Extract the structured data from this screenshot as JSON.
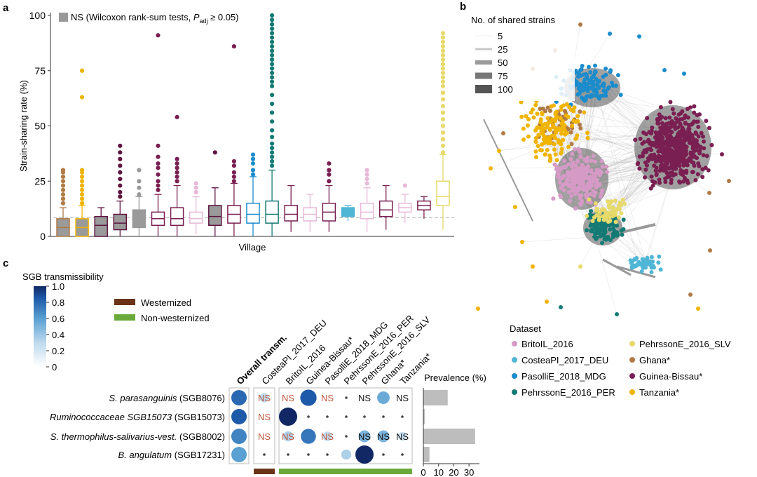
{
  "colors": {
    "brown": "#b07a45",
    "yellow": "#f0b400",
    "purple": "#7a1f52",
    "darkpurple": "#5e1440",
    "gray": "#999999",
    "pink": "#d59ac6",
    "lightpink": "#e7b9d8",
    "teal": "#137a74",
    "blue": "#1b8ccc",
    "cyan": "#4fb6d6",
    "paleyellow": "#e6da6b",
    "westernized": "#6b3418",
    "nonwesternized": "#6aaa3a",
    "nsred": "#c0573c"
  },
  "chart_data": [
    {
      "type": "box",
      "panel": "a",
      "ylabel": "Strain-sharing rate (%)",
      "xlabel": "Village",
      "ylim": [
        0,
        100
      ],
      "yticks": [
        "0",
        "25",
        "50",
        "75",
        "100"
      ],
      "legend": {
        "label": "NS (Wilcoxon rank-sum tests, ",
        "italic": "P",
        "sub": "adj",
        "rest": " ≥ 0.05)"
      },
      "reference_line": 8.5,
      "boxes": [
        {
          "color": "brown",
          "q1": 0,
          "median": 4,
          "q3": 8,
          "lo": 0,
          "hi": 13,
          "filled": true,
          "outliers": [
            15,
            17,
            19,
            21,
            23,
            25,
            27,
            29,
            30
          ]
        },
        {
          "color": "yellow",
          "q1": 0,
          "median": 4,
          "q3": 8,
          "lo": 0,
          "hi": 14,
          "filled": true,
          "outliers": [
            15,
            17,
            19,
            21,
            23,
            25,
            27,
            29,
            30,
            63,
            75
          ]
        },
        {
          "color": "darkpurple",
          "q1": 0,
          "median": 5,
          "q3": 9,
          "lo": 0,
          "hi": 13,
          "filled": true,
          "outliers": []
        },
        {
          "color": "darkpurple",
          "q1": 3,
          "median": 6,
          "q3": 10,
          "lo": 0,
          "hi": 16,
          "filled": true,
          "outliers": [
            18,
            20,
            23,
            26,
            29,
            32,
            35,
            38,
            41
          ]
        },
        {
          "color": "gray",
          "q1": 4,
          "median": 8,
          "q3": 12,
          "lo": 0,
          "hi": 18,
          "filled": true,
          "outliers": [
            19,
            22,
            25,
            30
          ]
        },
        {
          "color": "purple",
          "q1": 5,
          "median": 8,
          "q3": 11,
          "lo": 0,
          "hi": 19,
          "filled": false,
          "outliers": [
            21,
            23,
            25,
            28,
            31,
            33,
            36,
            41,
            91
          ]
        },
        {
          "color": "purple",
          "q1": 5,
          "median": 8,
          "q3": 13,
          "lo": 0,
          "hi": 23,
          "filled": false,
          "outliers": [
            25,
            27,
            29,
            31,
            33,
            35,
            54
          ]
        },
        {
          "color": "lightpink",
          "q1": 6,
          "median": 8,
          "q3": 11,
          "lo": 1,
          "hi": 18,
          "filled": false,
          "outliers": [
            20,
            22,
            24
          ]
        },
        {
          "color": "darkpurple",
          "q1": 5,
          "median": 9,
          "q3": 14,
          "lo": 0,
          "hi": 22,
          "filled": true,
          "outliers": [
            38
          ]
        },
        {
          "color": "purple",
          "q1": 6,
          "median": 10,
          "q3": 14,
          "lo": 0,
          "hi": 24,
          "filled": false,
          "outliers": [
            25,
            27,
            29,
            32,
            34,
            86
          ]
        },
        {
          "color": "blue",
          "q1": 6,
          "median": 10,
          "q3": 15,
          "lo": 0,
          "hi": 27,
          "filled": false,
          "outliers": [
            28,
            30,
            33,
            35,
            37
          ]
        },
        {
          "color": "teal",
          "q1": 6,
          "median": 10,
          "q3": 16,
          "lo": 0,
          "hi": 30,
          "filled": false,
          "outliers": [
            32,
            34,
            36,
            38,
            40,
            42,
            45,
            48,
            52,
            56,
            60,
            64,
            68,
            70,
            72,
            74,
            76,
            78,
            80,
            82,
            84,
            86,
            88,
            90,
            92,
            94,
            96,
            98,
            100
          ]
        },
        {
          "color": "purple",
          "q1": 7,
          "median": 10,
          "q3": 14,
          "lo": 2,
          "hi": 23,
          "filled": false,
          "outliers": []
        },
        {
          "color": "lightpink",
          "q1": 7,
          "median": 10,
          "q3": 13,
          "lo": 2,
          "hi": 19,
          "filled": false,
          "outliers": []
        },
        {
          "color": "purple",
          "q1": 7,
          "median": 11,
          "q3": 15,
          "lo": 2,
          "hi": 23,
          "filled": false,
          "outliers": [
            25,
            28,
            30,
            33
          ]
        },
        {
          "color": "cyan",
          "q1": 9,
          "median": 11,
          "q3": 13,
          "lo": 7,
          "hi": 14,
          "filled": true,
          "outliers": []
        },
        {
          "color": "lightpink",
          "q1": 8,
          "median": 11,
          "q3": 15,
          "lo": 2,
          "hi": 22,
          "filled": false,
          "outliers": [
            24,
            26,
            28,
            30
          ]
        },
        {
          "color": "purple",
          "q1": 9,
          "median": 12,
          "q3": 16,
          "lo": 3,
          "hi": 23,
          "filled": false,
          "outliers": []
        },
        {
          "color": "lightpink",
          "q1": 11,
          "median": 13,
          "q3": 15,
          "lo": 6,
          "hi": 19,
          "filled": false,
          "outliers": [
            23
          ]
        },
        {
          "color": "purple",
          "q1": 12,
          "median": 14,
          "q3": 16,
          "lo": 8,
          "hi": 18,
          "filled": false,
          "outliers": []
        },
        {
          "color": "paleyellow",
          "q1": 14,
          "median": 18,
          "q3": 25,
          "lo": 3,
          "hi": 37,
          "filled": false,
          "outliers": [
            38,
            41,
            44,
            47,
            50,
            53,
            56,
            59,
            62,
            65,
            68,
            70,
            72,
            74,
            76,
            78,
            80,
            82,
            84,
            86,
            88,
            90,
            92
          ]
        }
      ]
    },
    {
      "type": "network",
      "panel": "b",
      "legend_title": "No. of shared strains",
      "legend_values": [
        "5",
        "25",
        "50",
        "75",
        "100"
      ],
      "dataset_title": "Dataset",
      "datasets": [
        {
          "name": "BritoIL_2016",
          "color": "pink"
        },
        {
          "name": "CosteaPI_2017_DEU",
          "color": "cyan"
        },
        {
          "name": "PasolliE_2018_MDG",
          "color": "blue"
        },
        {
          "name": "PehrssonE_2016_PER",
          "color": "teal"
        },
        {
          "name": "PehrssonE_2016_SLV",
          "color": "paleyellow"
        },
        {
          "name": "Ghana*",
          "color": "brown"
        },
        {
          "name": "Guinea-Bissau*",
          "color": "purple"
        },
        {
          "name": "Tanzania*",
          "color": "yellow"
        }
      ]
    },
    {
      "type": "heatmap",
      "panel": "c",
      "colorbar_title": "SGB transmissibility",
      "colorbar_ticks": [
        "1.0",
        "0.8",
        "0.6",
        "0.4",
        "0.2",
        "0"
      ],
      "group_legend": [
        {
          "label": "Westernized",
          "color": "westernized"
        },
        {
          "label": "Non-westernized",
          "color": "nonwesternized"
        }
      ],
      "columns": [
        "Overall transm.",
        "CosteaPI_2017_DEU",
        "BritoIL_2016",
        "Guinea-Bissau*",
        "PasolliE_2018_MDG",
        "PehrssonE_2016_PER",
        "PehrssonE_2016_SLV",
        "Ghana*",
        "Tanzania*"
      ],
      "rows": [
        {
          "italic": "S. parasanguinis",
          "rest": " (SGB8076)",
          "prevalence": 16,
          "cells": [
            {
              "v": 0.8
            },
            {
              "v": 0.3,
              "ns": true,
              "nsc": "red"
            },
            {
              "v": 0,
              "ns": true,
              "nsc": "red"
            },
            {
              "v": 0.85
            },
            {
              "v": 0,
              "ns": true,
              "nsc": "red"
            },
            {
              "v": 0,
              "dot": true
            },
            {
              "v": 0,
              "ns": true,
              "nsc": "dark"
            },
            {
              "v": 0.55
            },
            {
              "v": 0,
              "ns": true,
              "nsc": "dark"
            }
          ]
        },
        {
          "italic": "Ruminococcaceae SGB15073",
          "rest": " (SGB15073)",
          "prevalence": 1,
          "cells": [
            {
              "v": 0.85
            },
            {
              "v": 0,
              "ns": true,
              "nsc": "red"
            },
            {
              "v": 1.0
            },
            {
              "v": 0,
              "dot": true
            },
            {
              "v": 0,
              "dot": true
            },
            {
              "v": 0,
              "dot": true
            },
            {
              "v": 0,
              "dot": true
            },
            {
              "v": 0,
              "dot": true
            },
            {
              "v": 0,
              "dot": true
            }
          ]
        },
        {
          "italic": "S. thermophilus-salivarius-vest.",
          "rest": " (SGB8002)",
          "prevalence": 34,
          "cells": [
            {
              "v": 0.7
            },
            {
              "v": 0,
              "ns": true,
              "nsc": "red"
            },
            {
              "v": 0.35,
              "ns": true,
              "nsc": "red"
            },
            {
              "v": 0.75
            },
            {
              "v": 0.3,
              "ns": true,
              "nsc": "red"
            },
            {
              "v": 0,
              "dot": true
            },
            {
              "v": 0.5,
              "ns": true,
              "nsc": "dark"
            },
            {
              "v": 0.5,
              "ns": true,
              "nsc": "dark"
            },
            {
              "v": 0.25,
              "ns": true,
              "nsc": "dark"
            }
          ]
        },
        {
          "italic": "B. angulatum",
          "rest": " (SGB17231)",
          "prevalence": 4,
          "cells": [
            {
              "v": 0.6
            },
            {
              "v": 0,
              "dot": true
            },
            {
              "v": 0,
              "dot": true
            },
            {
              "v": 0,
              "dot": true
            },
            {
              "v": 0,
              "dot": true
            },
            {
              "v": 0.35
            },
            {
              "v": 1.0
            },
            {
              "v": 0,
              "dot": true
            },
            {
              "v": 0,
              "dot": true
            }
          ]
        }
      ],
      "ns_label": "NS",
      "prevalence_label": "Prevalence (%)",
      "prevalence_ticks": [
        "0",
        "10",
        "20",
        "30"
      ]
    }
  ],
  "labels": {
    "a": "a",
    "b": "b",
    "c": "c"
  }
}
